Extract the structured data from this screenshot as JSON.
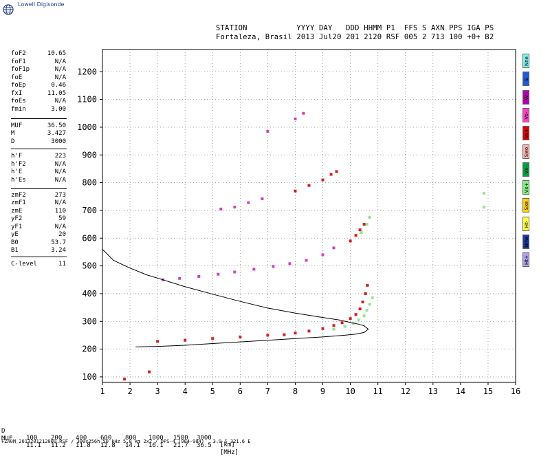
{
  "app": {
    "brand": "Lowell Digisonde",
    "logo_icon": "globe-icon"
  },
  "header": {
    "line1": "STATION           YYYY DAY   DDD HHMM P1  FFS S AXN PPS IGA PS",
    "line2": "Fortaleza, Brasil 2013 Jul20 201 2120 RSF 005 2 713 100 +0+ B2"
  },
  "params": [
    {
      "label": "foF2",
      "value": "10.65"
    },
    {
      "label": "foF1",
      "value": "N/A"
    },
    {
      "label": "foF1p",
      "value": "N/A"
    },
    {
      "label": "foE",
      "value": "N/A"
    },
    {
      "label": "foEp",
      "value": "0.46"
    },
    {
      "label": "fxI",
      "value": "11.05"
    },
    {
      "label": "foEs",
      "value": "N/A"
    },
    {
      "label": "fmin",
      "value": "3.00"
    },
    {
      "label": "MUF",
      "value": "36.50"
    },
    {
      "label": "M",
      "value": "3.427"
    },
    {
      "label": "D",
      "value": "3000"
    },
    {
      "label": "h'F",
      "value": "223"
    },
    {
      "label": "h'F2",
      "value": "N/A"
    },
    {
      "label": "h'E",
      "value": "N/A"
    },
    {
      "label": "h'Es",
      "value": "N/A"
    },
    {
      "label": "zmF2",
      "value": "273"
    },
    {
      "label": "zmF1",
      "value": "N/A"
    },
    {
      "label": "zmE",
      "value": "110"
    },
    {
      "label": "yF2",
      "value": "59"
    },
    {
      "label": "yF1",
      "value": "N/A"
    },
    {
      "label": "yE",
      "value": "20"
    },
    {
      "label": "B0",
      "value": "53.7"
    },
    {
      "label": "B1",
      "value": "3.24"
    },
    {
      "label": "C-level",
      "value": "11"
    }
  ],
  "modes": [
    {
      "label": "Nne",
      "color": "#7ff0f0"
    },
    {
      "label": "E",
      "color": "#1e5ad8"
    },
    {
      "label": "W",
      "color": "#b000b0"
    },
    {
      "label": "Vo-",
      "color": "#ff40c8"
    },
    {
      "label": "Vo+",
      "color": "#e00000"
    },
    {
      "label": "Swo",
      "color": "#ffb0b0"
    },
    {
      "label": "Vx-",
      "color": "#00a040"
    },
    {
      "label": "Vx+",
      "color": "#80f080"
    },
    {
      "label": "Sxe",
      "color": "#ffd000"
    },
    {
      "label": "Ht-",
      "color": "#ffff40"
    },
    {
      "label": "Nnw",
      "color": "#1e3aa0"
    },
    {
      "label": "Ht+",
      "color": "#b0a0f0"
    }
  ],
  "muf_table": {
    "d_label": "D",
    "d_values": [
      "100",
      "200",
      "400",
      "600",
      "800",
      "1000",
      "1500",
      "3000"
    ],
    "d_unit": "[km]",
    "muf_label": "MUF",
    "muf_values": [
      "11.1",
      "11.2",
      "11.8",
      "12.8",
      "14.1",
      "16.1",
      "21.7",
      "36.5"
    ],
    "muf_unit": "[MHz]"
  },
  "footer": "FZA0M_2013201212000.RSF / 300x256h 50 kHz 5.0 km 2x2 / DPS-4 (904-904)   3.9 S 321.6 E",
  "chart_data": {
    "type": "scatter",
    "xlim": [
      1,
      16
    ],
    "ylim": [
      80,
      1280
    ],
    "xticks": [
      1,
      2,
      3,
      4,
      5,
      6,
      7,
      8,
      9,
      10,
      11,
      12,
      13,
      14,
      15,
      16
    ],
    "yticks": [
      100,
      200,
      300,
      400,
      500,
      600,
      700,
      800,
      900,
      1000,
      1100,
      1200
    ],
    "grid": true,
    "colors": {
      "o": "#d81b1b",
      "x": "#8ee88e",
      "vo": "#d040c0",
      "vx": "#1a8a3a",
      "profile": "#000000"
    },
    "series": [
      {
        "mode": "o",
        "x": [
          1.8,
          2.7,
          3.0,
          4.0,
          5.0,
          6.0,
          7.0,
          7.6,
          8.0,
          8.5,
          9.0,
          9.4,
          9.7,
          10.0,
          10.2,
          10.35,
          10.45,
          10.55,
          10.62
        ],
        "y": [
          92,
          118,
          228,
          232,
          238,
          244,
          250,
          252,
          258,
          265,
          274,
          285,
          295,
          310,
          325,
          345,
          370,
          400,
          430
        ]
      },
      {
        "mode": "x",
        "x": [
          9.4,
          9.8,
          10.1,
          10.3,
          10.5,
          10.6,
          10.7,
          10.8
        ],
        "y": [
          272,
          282,
          292,
          305,
          320,
          340,
          362,
          385
        ]
      },
      {
        "mode": "vo",
        "x": [
          3.2,
          3.8,
          4.5,
          5.2,
          5.8,
          6.5,
          7.2,
          7.8,
          8.4,
          9.0,
          9.4
        ],
        "y": [
          450,
          455,
          462,
          470,
          478,
          488,
          498,
          508,
          520,
          540,
          565
        ]
      },
      {
        "mode": "o",
        "x": [
          8.0,
          8.5,
          9.0,
          9.3,
          9.5,
          10.0,
          10.2,
          10.35,
          10.5
        ],
        "y": [
          770,
          790,
          810,
          830,
          840,
          590,
          610,
          630,
          650
        ]
      },
      {
        "mode": "vo",
        "x": [
          5.3,
          5.8,
          6.3,
          6.8,
          7.0,
          8.0,
          8.3
        ],
        "y": [
          705,
          712,
          728,
          742,
          985,
          1030,
          1050
        ]
      },
      {
        "mode": "x",
        "x": [
          10.4,
          10.6,
          10.7,
          14.85,
          14.85
        ],
        "y": [
          620,
          650,
          675,
          762,
          712
        ]
      }
    ],
    "profile": {
      "x": [
        1.0,
        1.4,
        2.0,
        2.6,
        3.2,
        4.0,
        5.0,
        6.0,
        7.0,
        8.0,
        9.0,
        9.6,
        10.0,
        10.3,
        10.5,
        10.65,
        10.5,
        10.2,
        9.8,
        9.0,
        8.0,
        7.0,
        6.0,
        5.0,
        4.0,
        3.0,
        2.2
      ],
      "y": [
        560,
        520,
        492,
        468,
        450,
        425,
        398,
        372,
        348,
        330,
        314,
        305,
        296,
        290,
        284,
        272,
        260,
        254,
        250,
        244,
        238,
        232,
        226,
        220,
        214,
        210,
        208
      ]
    }
  }
}
